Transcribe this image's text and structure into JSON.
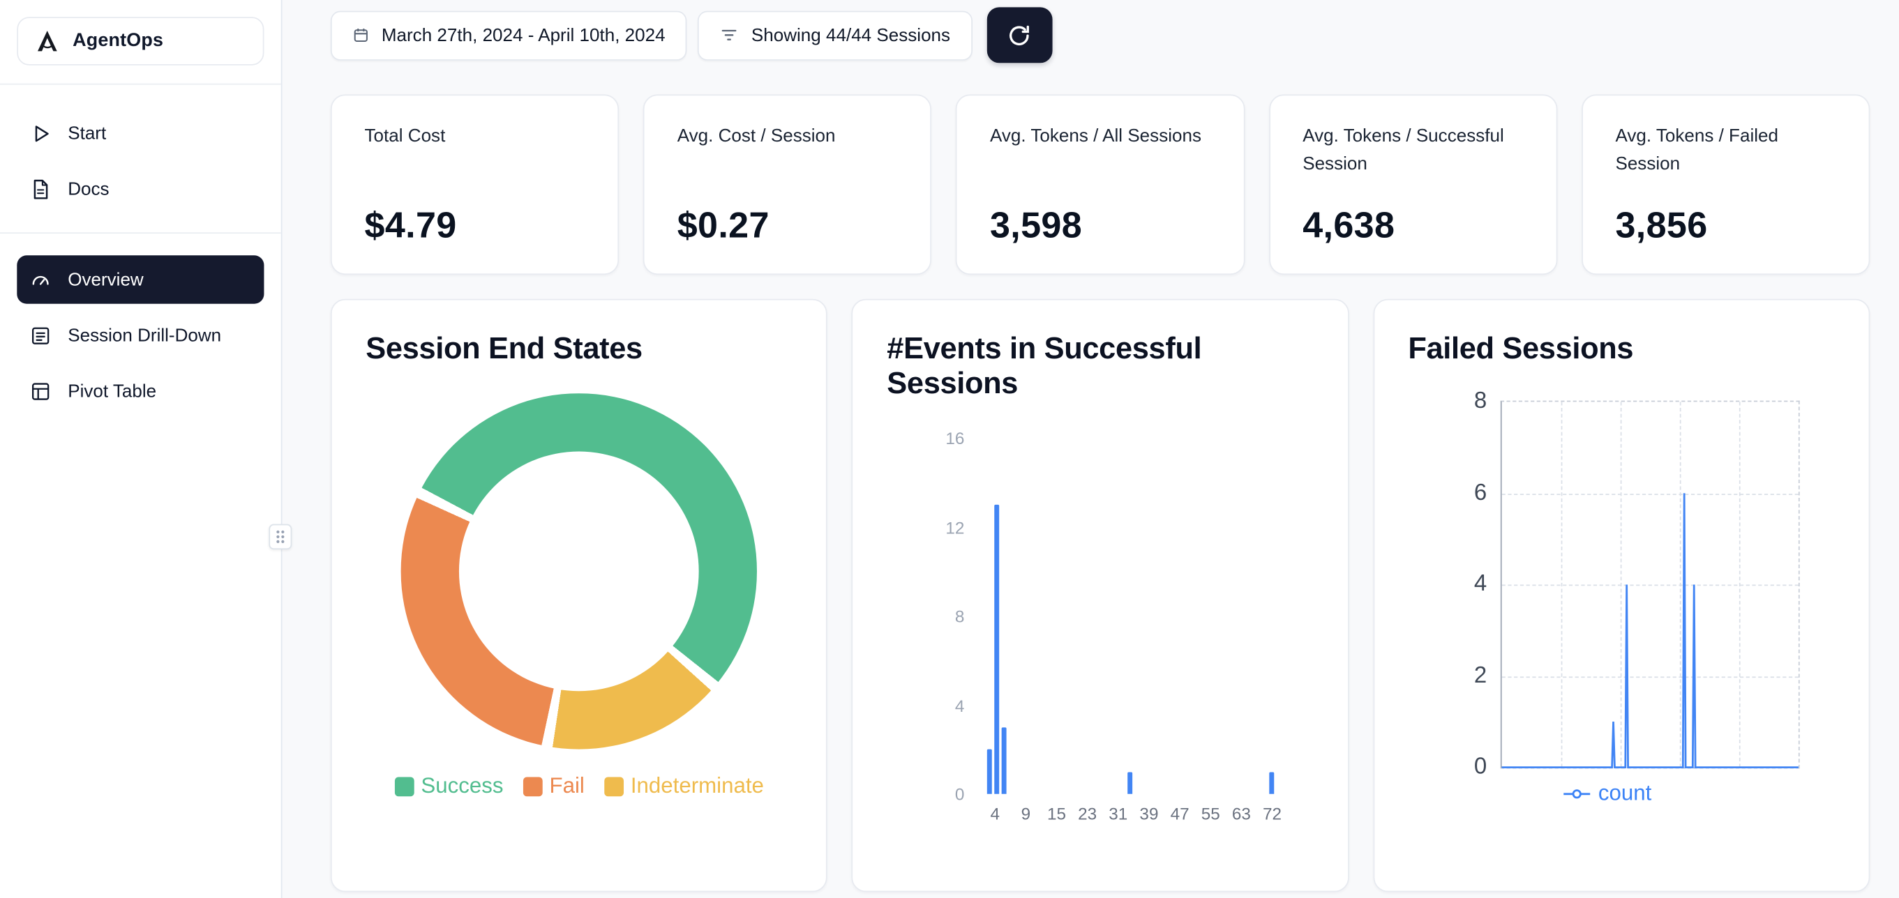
{
  "app": {
    "name": "AgentOps"
  },
  "sidebar": {
    "items": [
      {
        "label": "Start"
      },
      {
        "label": "Docs"
      },
      {
        "label": "Overview",
        "active": true
      },
      {
        "label": "Session Drill-Down"
      },
      {
        "label": "Pivot Table"
      }
    ]
  },
  "topbar": {
    "date_range": "March 27th, 2024 - April 10th, 2024",
    "sessions_filter": "Showing 44/44 Sessions"
  },
  "stats": [
    {
      "label": "Total Cost",
      "value": "$4.79"
    },
    {
      "label": "Avg. Cost / Session",
      "value": "$0.27"
    },
    {
      "label": "Avg. Tokens / All Sessions",
      "value": "3,598"
    },
    {
      "label": "Avg. Tokens / Successful Session",
      "value": "4,638"
    },
    {
      "label": "Avg. Tokens / Failed Session",
      "value": "3,856"
    }
  ],
  "colors": {
    "accent_dark": "#151a2e",
    "success": "#52BD8F",
    "fail": "#EC8950",
    "indeterminate": "#EFBB4D",
    "bar_blue": "#4285F4",
    "count_blue": "#3b82f6"
  },
  "chart_data": [
    {
      "type": "pie",
      "title": "Session End States",
      "labels": [
        "Success",
        "Fail",
        "Indeterminate"
      ],
      "values_percent": [
        54,
        29,
        16
      ],
      "colors": [
        "#52BD8F",
        "#EC8950",
        "#EFBB4D"
      ],
      "donut": true,
      "legend_position": "bottom",
      "start_angle_deg": 298,
      "draw_order": [
        0,
        2,
        1
      ],
      "gap_percent": 1
    },
    {
      "type": "bar",
      "title": "#Events in Successful Sessions",
      "xlabel": "",
      "ylabel": "",
      "bars": [
        {
          "x": 3,
          "count": 2,
          "pos_frac": 0.03
        },
        {
          "x": 4,
          "count": 13,
          "pos_frac": 0.052
        },
        {
          "x": 5,
          "count": 3,
          "pos_frac": 0.072
        },
        {
          "x": 39,
          "count": 1,
          "pos_frac": 0.456
        },
        {
          "x": 72,
          "count": 1,
          "pos_frac": 0.886
        }
      ],
      "yticks": [
        16,
        12,
        8,
        4,
        0
      ],
      "ylim": [
        0,
        16
      ],
      "xticks": [
        4,
        9,
        15,
        23,
        31,
        39,
        47,
        55,
        63,
        72
      ],
      "xtick_start_frac": 0.045,
      "xtick_step_frac": 0.0935,
      "bar_color": "#4285F4",
      "grid": false
    },
    {
      "type": "line",
      "title": "Failed Sessions",
      "series": [
        {
          "name": "count",
          "color": "#4285F4",
          "baseline": 0,
          "points": [
            {
              "pos_frac": 0.376,
              "value": 1
            },
            {
              "pos_frac": 0.421,
              "value": 4
            },
            {
              "pos_frac": 0.615,
              "value": 6
            },
            {
              "pos_frac": 0.648,
              "value": 4
            }
          ]
        }
      ],
      "yticks": [
        8,
        6,
        4,
        2,
        0
      ],
      "ylim": [
        0,
        8
      ],
      "grid": "dashed",
      "legend_position": "bottom"
    }
  ]
}
